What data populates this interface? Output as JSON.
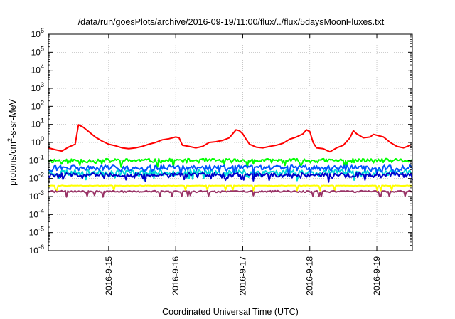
{
  "chart_data": {
    "type": "line",
    "title": "/data/run/goesPlots/archive/2016-09-19/11:00/flux/../flux/5daysMoonFluxes.txt",
    "xlabel": "Coordinated Universal Time (UTC)",
    "ylabel": {
      "pre": "protons/cm",
      "sup": "2",
      "post": "-s-sr-MeV"
    },
    "yscale": "log",
    "ylim_exp": [
      -6,
      6
    ],
    "ytick_base": "10",
    "ytick_exps": [
      -6,
      -5,
      -4,
      -3,
      -2,
      -1,
      0,
      1,
      2,
      3,
      4,
      5,
      6
    ],
    "xlim_days": [
      14.1,
      19.53
    ],
    "xticks": [
      {
        "label": "2016-9-15",
        "day": 15
      },
      {
        "label": "2016-9-16",
        "day": 16
      },
      {
        "label": "2016-9-17",
        "day": 17
      },
      {
        "label": "2016-9-18",
        "day": 18
      },
      {
        "label": "2016-9-19",
        "day": 19
      }
    ],
    "grid": true,
    "legend": "none",
    "series": [
      {
        "color": "#ff0000",
        "points": [
          [
            14.1,
            0.5
          ],
          [
            14.2,
            0.4
          ],
          [
            14.3,
            0.33
          ],
          [
            14.4,
            0.55
          ],
          [
            14.5,
            0.8
          ],
          [
            14.55,
            9.5
          ],
          [
            14.62,
            7.0
          ],
          [
            14.7,
            4.0
          ],
          [
            14.8,
            2.0
          ],
          [
            14.9,
            1.2
          ],
          [
            15.0,
            0.8
          ],
          [
            15.1,
            0.65
          ],
          [
            15.2,
            0.5
          ],
          [
            15.3,
            0.45
          ],
          [
            15.4,
            0.5
          ],
          [
            15.5,
            0.6
          ],
          [
            15.6,
            0.8
          ],
          [
            15.7,
            1.0
          ],
          [
            15.8,
            1.4
          ],
          [
            15.9,
            1.6
          ],
          [
            16.0,
            2.0
          ],
          [
            16.05,
            1.8
          ],
          [
            16.1,
            0.7
          ],
          [
            16.2,
            0.6
          ],
          [
            16.3,
            0.5
          ],
          [
            16.4,
            0.6
          ],
          [
            16.5,
            1.0
          ],
          [
            16.6,
            1.1
          ],
          [
            16.7,
            1.3
          ],
          [
            16.8,
            1.8
          ],
          [
            16.9,
            5.0
          ],
          [
            16.95,
            4.5
          ],
          [
            17.0,
            3.0
          ],
          [
            17.05,
            1.5
          ],
          [
            17.1,
            0.8
          ],
          [
            17.2,
            0.55
          ],
          [
            17.3,
            0.5
          ],
          [
            17.4,
            0.6
          ],
          [
            17.5,
            0.7
          ],
          [
            17.6,
            0.9
          ],
          [
            17.7,
            1.5
          ],
          [
            17.8,
            2.0
          ],
          [
            17.9,
            3.0
          ],
          [
            17.95,
            5.0
          ],
          [
            18.0,
            4.0
          ],
          [
            18.05,
            1.0
          ],
          [
            18.1,
            0.5
          ],
          [
            18.2,
            0.45
          ],
          [
            18.3,
            0.3
          ],
          [
            18.4,
            0.5
          ],
          [
            18.5,
            0.7
          ],
          [
            18.6,
            1.8
          ],
          [
            18.65,
            4.5
          ],
          [
            18.7,
            3.0
          ],
          [
            18.8,
            1.8
          ],
          [
            18.9,
            2.0
          ],
          [
            18.95,
            2.8
          ],
          [
            19.0,
            2.5
          ],
          [
            19.1,
            2.0
          ],
          [
            19.2,
            1.0
          ],
          [
            19.3,
            0.6
          ],
          [
            19.4,
            0.5
          ],
          [
            19.5,
            0.7
          ]
        ]
      },
      {
        "color": "#00ff00",
        "base": 0.1,
        "amp": 0.12,
        "seed": 11
      },
      {
        "color": "#00d8d8",
        "base": 0.022,
        "amp": 0.18,
        "seed": 23
      },
      {
        "color": "#0055ff",
        "base": 0.04,
        "amp": 0.16,
        "seed": 31
      },
      {
        "color": "#0000cc",
        "base": 0.016,
        "amp": 0.13,
        "seed": 47
      },
      {
        "color": "#ffff00",
        "base": 0.004,
        "amp": 0.015,
        "seed": 59
      },
      {
        "color": "#993366",
        "base": 0.0019,
        "amp": 0.05,
        "seed": 71
      }
    ]
  }
}
